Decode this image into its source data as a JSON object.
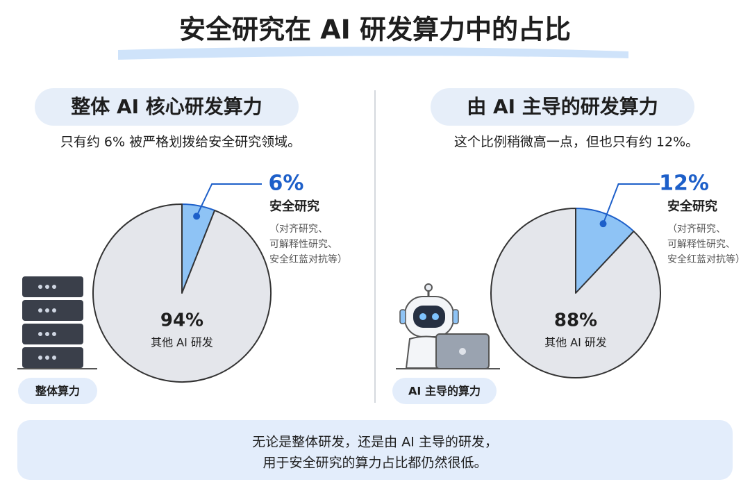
{
  "title": "安全研究在 AI 研发算力中的占比",
  "chart_data": [
    {
      "type": "pie",
      "title": "整体 AI 核心研发算力",
      "subtitle": "只有约 6% 被严格划拨给安全研究领域。",
      "categories": [
        "安全研究",
        "其他 AI 研发"
      ],
      "values": [
        6,
        94
      ],
      "value_labels": [
        "6%",
        "94%"
      ],
      "colors": [
        "#8ec3f5",
        "#e4e6eb"
      ],
      "annotation": [
        "（对齐研究、",
        "可解释性研究、",
        "安全红蓝对抗等）"
      ],
      "badge": "整体算力"
    },
    {
      "type": "pie",
      "title": "由 AI 主导的研发算力",
      "subtitle": "这个比例稍微高一点，但也只有约 12%。",
      "categories": [
        "安全研究",
        "其他 AI 研发"
      ],
      "values": [
        12,
        88
      ],
      "value_labels": [
        "12%",
        "88%"
      ],
      "colors": [
        "#8ec3f5",
        "#e4e6eb"
      ],
      "annotation": [
        "（对齐研究、",
        "可解释性研究、",
        "安全红蓝对抗等）"
      ],
      "badge": "AI 主导的算力"
    }
  ],
  "footer": [
    "无论是整体研发，还是由 AI 主导的研发，",
    "用于安全研究的算力占比都仍然很低。"
  ]
}
